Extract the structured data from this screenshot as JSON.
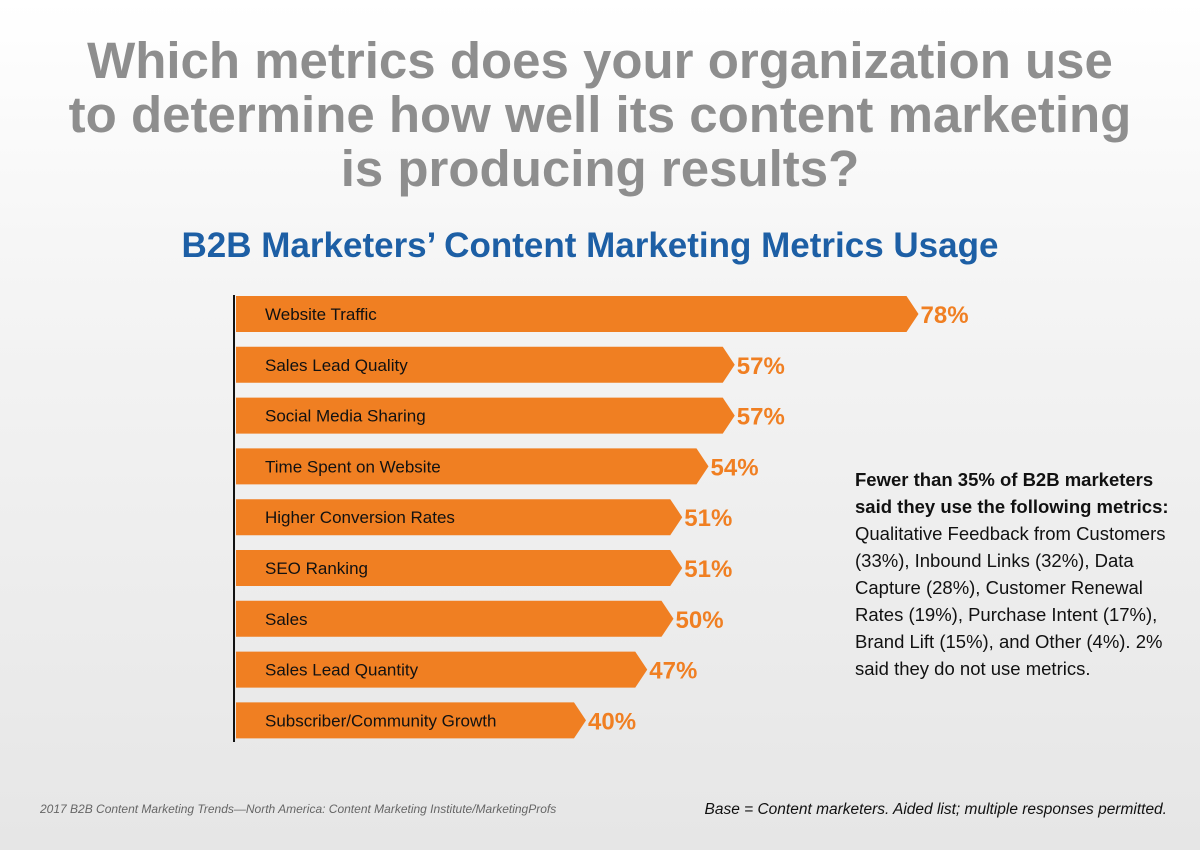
{
  "question": {
    "lines": [
      "Which metrics does your organization use",
      "to determine how well its content marketing",
      "is producing results?"
    ]
  },
  "colors": {
    "bar": "#f07f22",
    "value_label": "#f07f22",
    "title": "#1d5fa5",
    "question": "#8e8e8e",
    "axis": "#111111"
  },
  "chart_data": {
    "type": "bar",
    "orientation": "horizontal",
    "title": "B2B Marketers’ Content Marketing Metrics Usage",
    "categories": [
      "Website Traffic",
      "Sales Lead Quality",
      "Social Media Sharing",
      "Time Spent on Website",
      "Higher Conversion Rates",
      "SEO Ranking",
      "Sales",
      "Sales Lead Quantity",
      "Subscriber/Community Growth"
    ],
    "values": [
      78,
      57,
      57,
      54,
      51,
      51,
      50,
      47,
      40
    ],
    "value_labels": [
      "78%",
      "57%",
      "57%",
      "54%",
      "51%",
      "51%",
      "50%",
      "47%",
      "40%"
    ],
    "xlim": [
      0,
      100
    ],
    "grid": false,
    "legend": "none"
  },
  "side_note": {
    "bold": "Fewer than 35% of B2B marketers said they use the following metrics:",
    "text": "Qualitative Feedback from Customers (33%), Inbound Links (32%), Data Capture (28%), Customer Renewal Rates (19%), Purchase Intent (17%), Brand Lift (15%), and Other (4%). 2% said they do not use metrics."
  },
  "footer": {
    "source": "2017 B2B Content Marketing Trends—North America: Content Marketing Institute/MarketingProfs",
    "base": "Base = Content marketers. Aided list; multiple responses permitted."
  }
}
